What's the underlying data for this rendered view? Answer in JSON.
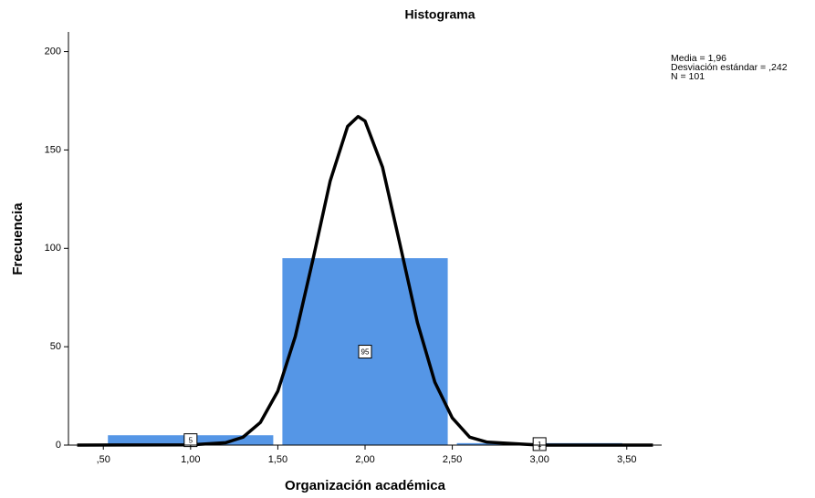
{
  "chart_data": {
    "type": "histogram",
    "title": "Histograma",
    "xlabel": "Organización académica",
    "ylabel": "Frecuencia",
    "bins": [
      0.5,
      1.5,
      2.5,
      3.5
    ],
    "counts": [
      5,
      95,
      1
    ],
    "color": "#5596e6",
    "xlim": [
      0.3,
      3.7
    ],
    "ylim": [
      0,
      210
    ],
    "xticks": [
      {
        "value": 0.5,
        "label": ",50"
      },
      {
        "value": 1,
        "label": "1,00"
      },
      {
        "value": 1.5,
        "label": "1,50"
      },
      {
        "value": 2,
        "label": "2,00"
      },
      {
        "value": 2.5,
        "label": "2,50"
      },
      {
        "value": 3,
        "label": "3,00"
      },
      {
        "value": 3.5,
        "label": "3,50"
      }
    ],
    "yticks": [
      0,
      50,
      100,
      150,
      200
    ],
    "curve": {
      "color": "#000000",
      "x": [
        0.35,
        1.0,
        1.2,
        1.3,
        1.4,
        1.5,
        1.6,
        1.7,
        1.8,
        1.9,
        1.96,
        2.0,
        2.1,
        2.2,
        2.3,
        2.4,
        2.5,
        2.6,
        2.7,
        3.0,
        3.65
      ],
      "y": [
        0,
        0.1,
        1.2,
        4,
        11.5,
        27.4,
        55.2,
        93.8,
        134.2,
        162,
        167,
        164.7,
        141.3,
        102.1,
        62.3,
        32,
        13.8,
        4,
        1.5,
        0,
        0
      ]
    },
    "annotations": [
      "Media = 1,96",
      "Desviación estándar = ,242",
      "N = 101"
    ]
  }
}
